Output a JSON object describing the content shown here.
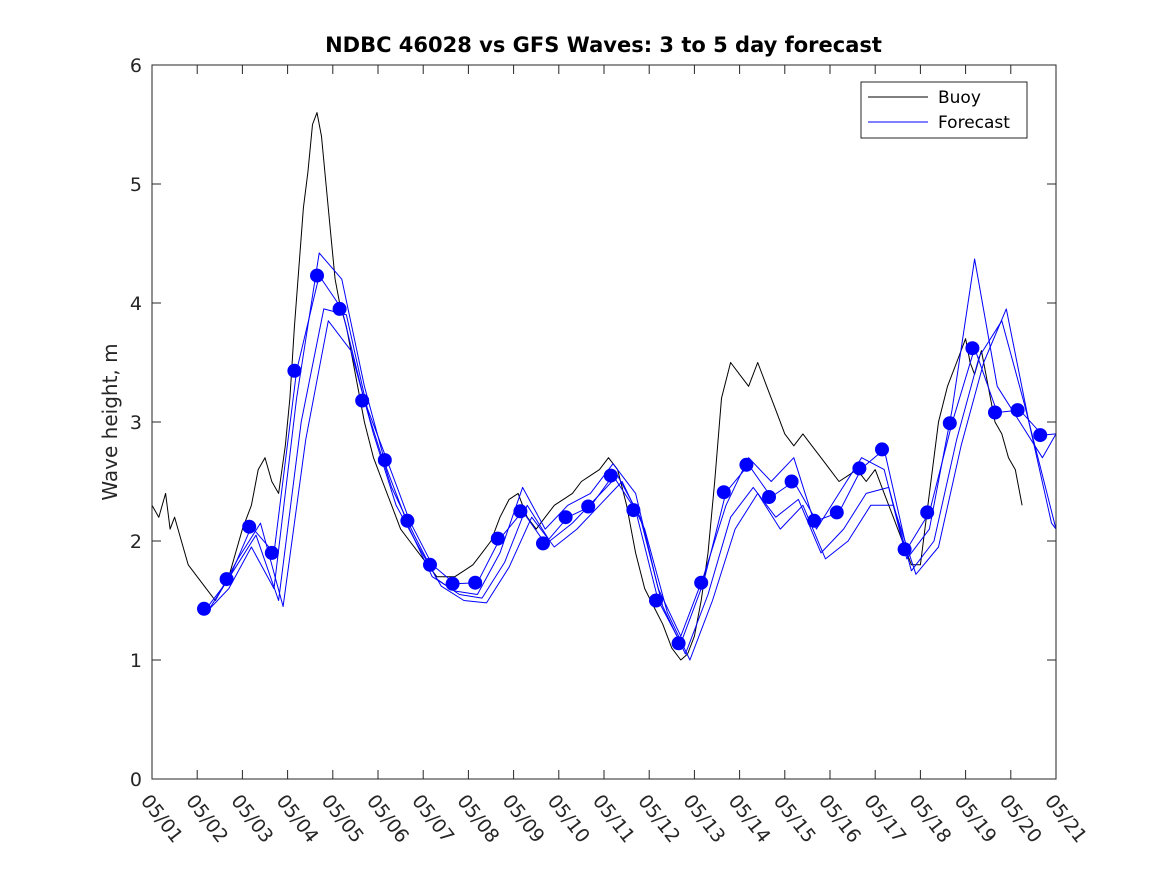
{
  "chart_data": {
    "type": "line",
    "title": "NDBC 46028 vs GFS Waves: 3 to 5 day forecast",
    "xlabel": "",
    "ylabel": "Wave height, m",
    "xlim": [
      1,
      21
    ],
    "ylim": [
      0,
      6
    ],
    "x_tick_labels": [
      "05/01",
      "05/02",
      "05/03",
      "05/04",
      "05/05",
      "05/06",
      "05/07",
      "05/08",
      "05/09",
      "05/10",
      "05/11",
      "05/12",
      "05/13",
      "05/14",
      "05/15",
      "05/16",
      "05/17",
      "05/18",
      "05/19",
      "05/20",
      "05/21"
    ],
    "y_ticks": [
      0,
      1,
      2,
      3,
      4,
      5,
      6
    ],
    "legend_position": "top-right",
    "grid": false,
    "colors": {
      "buoy": "#000000",
      "forecast": "#0000ff",
      "axes": "#262626"
    },
    "legend": [
      {
        "label": "Buoy",
        "color": "#000000"
      },
      {
        "label": "Forecast",
        "color": "#0000ff"
      }
    ],
    "buoy_series": {
      "name": "Buoy",
      "x": [
        1.0,
        1.15,
        1.3,
        1.4,
        1.5,
        1.65,
        1.8,
        2.0,
        2.2,
        2.4,
        2.55,
        2.7,
        2.85,
        3.0,
        3.1,
        3.2,
        3.35,
        3.5,
        3.65,
        3.8,
        3.95,
        4.05,
        4.15,
        4.25,
        4.35,
        4.45,
        4.55,
        4.65,
        4.75,
        4.85,
        4.95,
        5.05,
        5.15,
        5.3,
        5.5,
        5.7,
        5.9,
        6.1,
        6.3,
        6.5,
        6.7,
        6.9,
        7.1,
        7.3,
        7.5,
        7.7,
        7.9,
        8.1,
        8.3,
        8.5,
        8.7,
        8.9,
        9.1,
        9.3,
        9.5,
        9.7,
        9.9,
        10.1,
        10.3,
        10.5,
        10.7,
        10.9,
        11.1,
        11.3,
        11.5,
        11.7,
        11.9,
        12.1,
        12.3,
        12.5,
        12.7,
        12.85,
        13.0,
        13.15,
        13.3,
        13.45,
        13.6,
        13.8,
        14.0,
        14.2,
        14.4,
        14.6,
        14.8,
        15.0,
        15.2,
        15.4,
        15.6,
        15.8,
        16.0,
        16.2,
        16.4,
        16.6,
        16.8,
        17.0,
        17.2,
        17.4,
        17.6,
        17.8,
        18.0,
        18.2,
        18.4,
        18.6,
        18.8,
        19.0,
        19.1,
        19.2,
        19.35,
        19.5,
        19.65,
        19.8,
        19.95,
        20.1,
        20.25
      ],
      "y": [
        2.3,
        2.2,
        2.4,
        2.1,
        2.2,
        2.0,
        1.8,
        1.7,
        1.6,
        1.5,
        1.6,
        1.7,
        1.9,
        2.1,
        2.2,
        2.3,
        2.6,
        2.7,
        2.5,
        2.4,
        2.8,
        3.2,
        3.8,
        4.3,
        4.8,
        5.1,
        5.5,
        5.6,
        5.4,
        5.0,
        4.6,
        4.2,
        4.0,
        3.8,
        3.4,
        3.0,
        2.7,
        2.5,
        2.3,
        2.1,
        2.0,
        1.9,
        1.8,
        1.7,
        1.7,
        1.7,
        1.75,
        1.8,
        1.9,
        2.0,
        2.2,
        2.35,
        2.4,
        2.2,
        2.1,
        2.2,
        2.3,
        2.35,
        2.4,
        2.5,
        2.55,
        2.6,
        2.7,
        2.6,
        2.3,
        1.9,
        1.6,
        1.45,
        1.3,
        1.1,
        1.0,
        1.05,
        1.2,
        1.5,
        1.9,
        2.5,
        3.2,
        3.5,
        3.4,
        3.3,
        3.5,
        3.3,
        3.1,
        2.9,
        2.8,
        2.9,
        2.8,
        2.7,
        2.6,
        2.5,
        2.55,
        2.6,
        2.5,
        2.6,
        2.4,
        2.2,
        2.0,
        1.8,
        1.8,
        2.4,
        3.0,
        3.3,
        3.5,
        3.7,
        3.5,
        3.4,
        3.6,
        3.3,
        3.0,
        2.9,
        2.7,
        2.6,
        2.3
      ]
    },
    "forecast_series": [
      {
        "x": [
          2.2,
          2.7,
          3.2,
          3.7,
          4.2,
          4.7,
          5.2,
          5.7,
          6.2,
          6.7,
          7.2,
          7.7,
          8.2,
          8.7,
          9.2,
          9.7,
          10.2,
          10.7,
          11.2,
          11.7,
          12.2,
          12.7,
          13.2,
          13.7,
          14.2,
          14.7,
          15.2,
          15.7,
          16.2,
          16.7,
          17.2,
          17.7,
          18.2,
          18.7,
          19.2,
          19.7,
          20.2,
          20.7,
          21.0
        ],
        "y": [
          1.43,
          1.68,
          2.12,
          1.9,
          3.43,
          4.23,
          3.95,
          3.18,
          2.68,
          2.17,
          1.8,
          1.64,
          1.65,
          2.02,
          2.25,
          1.98,
          2.2,
          2.29,
          2.55,
          2.26,
          1.5,
          1.14,
          1.65,
          2.41,
          2.64,
          2.37,
          2.5,
          2.17,
          2.24,
          2.61,
          2.77,
          1.93,
          2.24,
          2.99,
          3.62,
          3.08,
          3.1,
          2.89,
          2.9
        ]
      },
      {
        "x": [
          2.2,
          2.7,
          3.2,
          3.7,
          4.2,
          4.7,
          5.2,
          5.7,
          6.2,
          6.7,
          7.2,
          7.7,
          8.2,
          8.7,
          9.2,
          9.7,
          10.2,
          10.7,
          11.2,
          11.7,
          12.2,
          12.7,
          13.2,
          13.7,
          14.2,
          14.7,
          15.2,
          15.7,
          16.2,
          16.7,
          17.2,
          17.7,
          18.2,
          18.7,
          19.2,
          19.7,
          20.2,
          20.7,
          21.0
        ],
        "y": [
          1.4,
          1.6,
          1.95,
          1.6,
          3.2,
          4.42,
          4.2,
          3.3,
          2.6,
          2.1,
          1.7,
          1.58,
          1.55,
          1.9,
          2.45,
          2.1,
          2.3,
          2.4,
          2.65,
          2.4,
          1.6,
          1.2,
          1.7,
          2.3,
          2.7,
          2.5,
          2.7,
          2.1,
          2.4,
          2.7,
          2.6,
          1.85,
          2.1,
          3.1,
          4.37,
          3.3,
          3.0,
          2.7,
          2.9
        ]
      },
      {
        "x": [
          2.3,
          2.8,
          3.3,
          3.8,
          4.3,
          4.8,
          5.3,
          5.8,
          6.3,
          6.8,
          7.3,
          7.8,
          8.3,
          8.8,
          9.3,
          9.8,
          10.3,
          10.8,
          11.3,
          11.8,
          12.3,
          12.8,
          13.3,
          13.8,
          14.3,
          14.8,
          15.3,
          15.8,
          16.3,
          16.8,
          17.3,
          17.8,
          18.3,
          18.8,
          19.3,
          19.8,
          20.3,
          20.8,
          21.0
        ],
        "y": [
          1.45,
          1.75,
          2.05,
          1.5,
          3.0,
          3.95,
          3.9,
          3.05,
          2.45,
          2.05,
          1.68,
          1.55,
          1.52,
          1.82,
          2.3,
          2.0,
          2.15,
          2.35,
          2.55,
          2.2,
          1.45,
          1.05,
          1.55,
          2.2,
          2.45,
          2.2,
          2.35,
          1.9,
          2.1,
          2.4,
          2.45,
          1.75,
          2.0,
          2.85,
          3.55,
          3.85,
          3.15,
          2.4,
          2.1
        ]
      },
      {
        "x": [
          2.4,
          2.9,
          3.4,
          3.9,
          4.4,
          4.9,
          5.4,
          5.9,
          6.4,
          6.9,
          7.4,
          7.9,
          8.4,
          8.9,
          9.4,
          9.9,
          10.4,
          10.9,
          11.4,
          11.9,
          12.4,
          12.9,
          13.4,
          13.9,
          14.4,
          14.9,
          15.4,
          15.9,
          16.4,
          16.9,
          17.4,
          17.9,
          18.4,
          18.9,
          19.4,
          19.9,
          20.4,
          20.9,
          21.0
        ],
        "y": [
          1.5,
          1.85,
          2.15,
          1.45,
          2.85,
          3.85,
          3.6,
          2.9,
          2.3,
          1.95,
          1.62,
          1.5,
          1.48,
          1.78,
          2.2,
          1.95,
          2.1,
          2.3,
          2.5,
          2.1,
          1.4,
          1.0,
          1.5,
          2.1,
          2.4,
          2.1,
          2.3,
          1.85,
          2.0,
          2.3,
          2.3,
          1.72,
          1.95,
          2.8,
          3.5,
          3.95,
          3.0,
          2.15,
          2.1
        ]
      }
    ],
    "forecast_markers": {
      "x": [
        2.15,
        2.65,
        3.15,
        3.65,
        4.15,
        4.65,
        5.15,
        5.65,
        6.15,
        6.65,
        7.15,
        7.65,
        8.15,
        8.65,
        9.15,
        9.65,
        10.15,
        10.65,
        11.15,
        11.65,
        12.15,
        12.65,
        13.15,
        13.65,
        14.15,
        14.65,
        15.15,
        15.65,
        16.15,
        16.65,
        17.15,
        17.65,
        18.15,
        18.65,
        19.15,
        19.65,
        20.15,
        20.65
      ],
      "y": [
        1.43,
        1.68,
        2.12,
        1.9,
        3.43,
        4.23,
        3.95,
        3.18,
        2.68,
        2.17,
        1.8,
        1.64,
        1.65,
        2.02,
        2.25,
        1.98,
        2.2,
        2.29,
        2.55,
        2.26,
        1.5,
        1.14,
        1.65,
        2.41,
        2.64,
        2.37,
        2.5,
        2.17,
        2.24,
        2.61,
        2.77,
        1.93,
        2.24,
        2.99,
        3.62,
        3.08,
        3.1,
        2.89
      ]
    }
  }
}
